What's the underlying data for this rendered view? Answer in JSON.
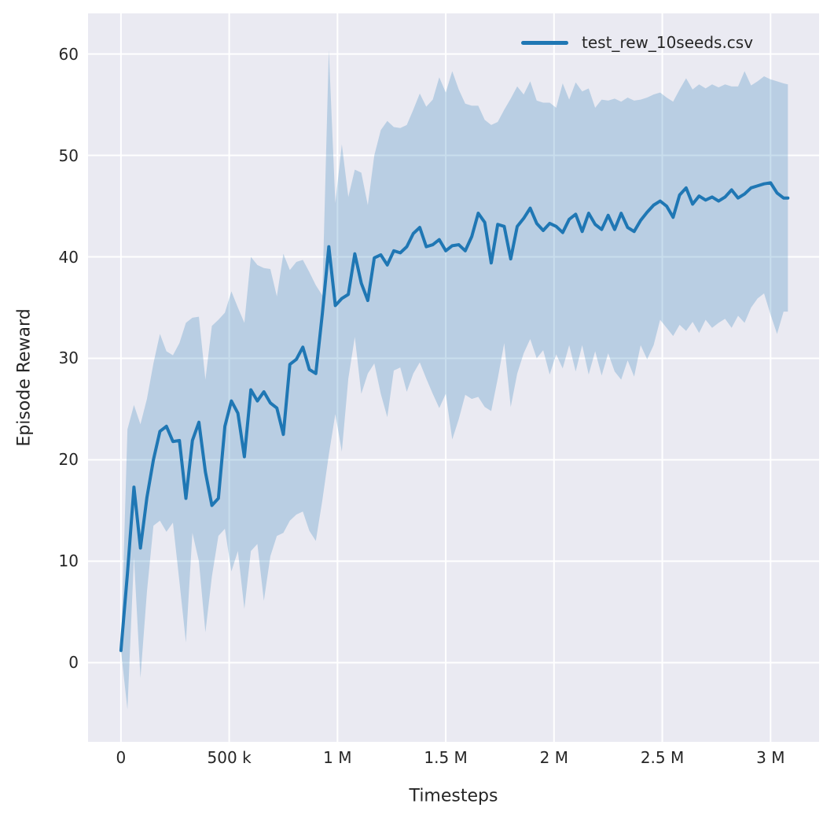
{
  "figure": {
    "background": "#ffffff",
    "plot_background": "#eaeaf2",
    "grid_color": "#ffffff",
    "text_color": "#262626",
    "line_color": "#1f77b4",
    "band_opacity": 0.24
  },
  "legend": {
    "label": "test_rew_10seeds.csv"
  },
  "chart_data": {
    "type": "line",
    "title": "",
    "xlabel": "Timesteps",
    "ylabel": "Episode Reward",
    "grid": true,
    "legend_position": "upper right",
    "x_unit_note": "x values in thousands of timesteps",
    "xlim_k": [
      -152,
      3224
    ],
    "ylim": [
      -7.8,
      64.0
    ],
    "x_ticks": [
      {
        "value_k": 0,
        "label": "0"
      },
      {
        "value_k": 500,
        "label": "500 k"
      },
      {
        "value_k": 1000,
        "label": "1 M"
      },
      {
        "value_k": 1500,
        "label": "1.5 M"
      },
      {
        "value_k": 2000,
        "label": "2 M"
      },
      {
        "value_k": 2500,
        "label": "2.5 M"
      },
      {
        "value_k": 3000,
        "label": "3 M"
      }
    ],
    "y_ticks": [
      {
        "value": 0,
        "label": "0"
      },
      {
        "value": 10,
        "label": "10"
      },
      {
        "value": 20,
        "label": "20"
      },
      {
        "value": 30,
        "label": "30"
      },
      {
        "value": 40,
        "label": "40"
      },
      {
        "value": 50,
        "label": "50"
      },
      {
        "value": 60,
        "label": "60"
      }
    ],
    "series": [
      {
        "name": "test_rew_10seeds.csv",
        "x_k": [
          0,
          30,
          60,
          90,
          120,
          150,
          180,
          210,
          240,
          270,
          300,
          330,
          360,
          390,
          420,
          450,
          480,
          510,
          540,
          570,
          600,
          630,
          660,
          690,
          720,
          750,
          780,
          810,
          840,
          870,
          900,
          930,
          960,
          990,
          1020,
          1050,
          1080,
          1110,
          1140,
          1170,
          1200,
          1230,
          1260,
          1290,
          1320,
          1350,
          1380,
          1410,
          1440,
          1470,
          1500,
          1530,
          1560,
          1590,
          1620,
          1650,
          1680,
          1710,
          1740,
          1770,
          1800,
          1830,
          1860,
          1890,
          1920,
          1950,
          1980,
          2010,
          2040,
          2070,
          2100,
          2130,
          2160,
          2190,
          2220,
          2250,
          2280,
          2310,
          2340,
          2370,
          2400,
          2430,
          2460,
          2490,
          2520,
          2550,
          2580,
          2610,
          2640,
          2670,
          2700,
          2730,
          2760,
          2790,
          2820,
          2850,
          2880,
          2910,
          2940,
          2970,
          3000,
          3030,
          3060,
          3080
        ],
        "mean": [
          1.2,
          8.8,
          17.3,
          11.3,
          16.3,
          20.0,
          22.8,
          23.3,
          21.8,
          21.9,
          16.2,
          21.9,
          23.7,
          18.8,
          15.5,
          16.2,
          23.3,
          25.8,
          24.6,
          20.3,
          26.9,
          25.8,
          26.7,
          25.6,
          25.1,
          22.5,
          29.4,
          29.9,
          31.1,
          28.9,
          28.5,
          34.4,
          41.0,
          35.2,
          35.9,
          36.3,
          40.3,
          37.4,
          35.7,
          39.9,
          40.2,
          39.2,
          40.6,
          40.4,
          41.0,
          42.3,
          42.9,
          41.0,
          41.2,
          41.7,
          40.6,
          41.1,
          41.2,
          40.6,
          42.0,
          44.3,
          43.4,
          39.4,
          43.2,
          43.0,
          39.8,
          43.0,
          43.8,
          44.8,
          43.3,
          42.6,
          43.3,
          43.0,
          42.4,
          43.7,
          44.2,
          42.5,
          44.3,
          43.2,
          42.7,
          44.1,
          42.7,
          44.3,
          42.9,
          42.5,
          43.6,
          44.4,
          45.1,
          45.5,
          45.0,
          43.9,
          46.1,
          46.8,
          45.2,
          46.0,
          45.6,
          45.9,
          45.5,
          45.9,
          46.6,
          45.8,
          46.2,
          46.8,
          47.0,
          47.2,
          47.3,
          46.3,
          45.8,
          45.8
        ],
        "lo": [
          1.2,
          -4.6,
          10.4,
          -1.5,
          7.0,
          13.5,
          14.0,
          12.9,
          13.8,
          8.0,
          2.0,
          12.8,
          10.0,
          3.0,
          8.5,
          12.5,
          13.2,
          9.0,
          11.0,
          5.3,
          11.0,
          11.7,
          6.1,
          10.5,
          12.5,
          12.8,
          14.0,
          14.6,
          14.9,
          13.0,
          12.0,
          16.0,
          20.5,
          24.5,
          20.8,
          28.0,
          32.1,
          26.5,
          28.5,
          29.5,
          26.5,
          24.2,
          28.8,
          29.1,
          26.7,
          28.5,
          29.6,
          28.0,
          26.5,
          25.1,
          26.5,
          22.0,
          24.0,
          26.4,
          26.0,
          26.2,
          25.2,
          24.8,
          28.0,
          31.5,
          25.2,
          28.5,
          30.5,
          31.9,
          30.0,
          30.8,
          28.4,
          30.4,
          29.0,
          31.3,
          28.7,
          31.3,
          28.4,
          30.7,
          28.3,
          30.5,
          28.7,
          27.9,
          29.8,
          28.2,
          31.3,
          29.9,
          31.3,
          33.8,
          33.0,
          32.2,
          33.3,
          32.7,
          33.6,
          32.5,
          33.8,
          33.0,
          33.5,
          33.9,
          33.0,
          34.2,
          33.5,
          35.0,
          35.9,
          36.4,
          34.3,
          32.4,
          34.6,
          34.6
        ],
        "hi": [
          1.2,
          23.0,
          25.4,
          23.5,
          26.0,
          29.5,
          32.4,
          30.7,
          30.3,
          31.5,
          33.5,
          34.0,
          34.1,
          27.9,
          33.2,
          33.8,
          34.5,
          36.6,
          35.0,
          33.5,
          40.0,
          39.2,
          38.9,
          38.8,
          36.1,
          40.3,
          38.7,
          39.5,
          39.7,
          38.5,
          37.2,
          36.2,
          60.4,
          45.3,
          51.1,
          45.9,
          48.6,
          48.3,
          45.1,
          50.0,
          52.5,
          53.4,
          52.8,
          52.7,
          53.0,
          54.5,
          56.1,
          54.8,
          55.5,
          57.7,
          56.2,
          58.3,
          56.5,
          55.1,
          54.9,
          54.9,
          53.5,
          53.0,
          53.3,
          54.5,
          55.6,
          56.8,
          56.0,
          57.3,
          55.4,
          55.2,
          55.2,
          54.7,
          57.1,
          55.5,
          57.2,
          56.3,
          56.6,
          54.7,
          55.5,
          55.4,
          55.6,
          55.3,
          55.7,
          55.4,
          55.5,
          55.7,
          56.0,
          56.2,
          55.7,
          55.3,
          56.5,
          57.6,
          56.5,
          57.0,
          56.6,
          57.0,
          56.7,
          57.0,
          56.8,
          56.8,
          58.3,
          56.9,
          57.3,
          57.8,
          57.5,
          57.3,
          57.1,
          57.0
        ]
      }
    ]
  }
}
